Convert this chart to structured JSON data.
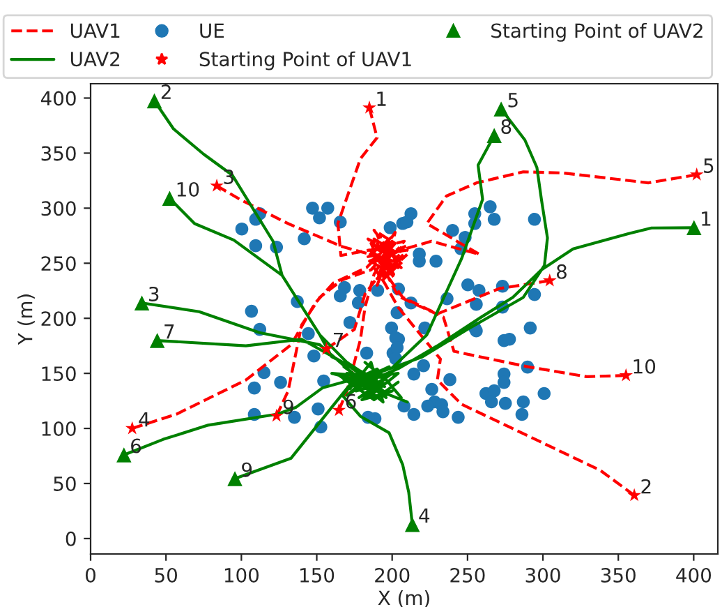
{
  "chart_data": {
    "type": "line",
    "xlabel": "X (m)",
    "ylabel": "Y (m)",
    "xlim": [
      0,
      416
    ],
    "ylim": [
      -14,
      413
    ],
    "xticks": [
      0,
      50,
      100,
      150,
      200,
      250,
      300,
      350,
      400
    ],
    "yticks": [
      0,
      50,
      100,
      150,
      200,
      250,
      300,
      350,
      400
    ],
    "grid": false,
    "legend": "top",
    "series": [
      {
        "name": "UAV1",
        "color": "#ff0000",
        "line_style": "dashed",
        "marker": "none",
        "x": [
          184.9,
          190,
          179,
          164,
          166,
          185,
          200,
          188,
          205,
          192,
          198,
          null,
          360.6,
          338,
          246,
          230,
          232,
          204,
          195,
          186,
          208,
          190,
          200,
          184,
          null,
          83.7,
          99,
          131,
          167,
          186,
          206,
          190,
          201,
          185,
          210,
          null,
          27.6,
          57,
          103,
          133,
          149,
          161,
          183,
          200,
          190,
          206,
          187,
          null,
          402,
          370,
          313,
          287,
          256,
          236,
          223,
          258,
          226,
          206,
          188,
          202,
          194,
          210,
          null,
          164.7,
          170,
          179,
          182,
          188,
          198,
          184,
          204,
          192,
          null,
          156.4,
          175,
          182,
          194,
          186,
          207,
          190,
          200,
          null,
          304.5,
          271,
          230,
          207,
          196,
          210,
          184,
          200,
          192,
          null,
          123.3,
          131,
          140,
          152,
          167,
          186,
          202,
          188,
          206,
          196,
          null,
          355.1,
          329,
          290,
          241,
          234,
          204,
          194,
          208,
          186,
          202
        ],
        "values": [
          391.2,
          364,
          345,
          286,
          257,
          262,
          248,
          272,
          258,
          240,
          266,
          null,
          39.2,
          62,
          122,
          144,
          163,
          210,
          232,
          250,
          262,
          276,
          244,
          260,
          null,
          320.3,
          308,
          286,
          265,
          258,
          250,
          268,
          240,
          252,
          266,
          null,
          100,
          113,
          144,
          176,
          214,
          232,
          246,
          270,
          236,
          254,
          264,
          null,
          330.4,
          323,
          332,
          333,
          323,
          311,
          286,
          258,
          270,
          262,
          250,
          278,
          238,
          258,
          null,
          116.5,
          134,
          181,
          210,
          240,
          262,
          272,
          246,
          256,
          null,
          172.2,
          190,
          222,
          244,
          268,
          252,
          230,
          264,
          null,
          234.2,
          227,
          204,
          219,
          240,
          262,
          256,
          274,
          246,
          null,
          111.4,
          134,
          194,
          219,
          235,
          244,
          268,
          280,
          246,
          258,
          null,
          148.1,
          147,
          156,
          170,
          201,
          220,
          246,
          270,
          262,
          236
        ]
      },
      {
        "name": "UAV2",
        "color": "#008000",
        "line_style": "solid",
        "marker": "none",
        "x": [
          400.2,
          372,
          357,
          320,
          299,
          280,
          259,
          230,
          205,
          180,
          196,
          170,
          190,
          null,
          42.3,
          55,
          75,
          94,
          121,
          127,
          152,
          170,
          192,
          178,
          200,
          184,
          null,
          34,
          72,
          112,
          152,
          174,
          195,
          165,
          188,
          204,
          null,
          213.4,
          211,
          207,
          198,
          179,
          167,
          180,
          196,
          172,
          190,
          206,
          null,
          272.3,
          288,
          296,
          299,
          303,
          301,
          287,
          250,
          220,
          190,
          176,
          198,
          182,
          null,
          22.1,
          48,
          78,
          124,
          136,
          154,
          178,
          196,
          168,
          188,
          210,
          null,
          44.2,
          103,
          140,
          170,
          188,
          160,
          196,
          180,
          200,
          null,
          267.7,
          257,
          260,
          246,
          223,
          200,
          176,
          194,
          186,
          172,
          null,
          95.7,
          133,
          161,
          178,
          194,
          168,
          204,
          184,
          null,
          52.4,
          69,
          95,
          127,
          152,
          160,
          185,
          170,
          198,
          176
        ],
        "values": [
          282.3,
          282,
          277,
          263,
          244,
          219,
          201,
          175,
          155,
          140,
          130,
          150,
          146,
          null,
          397.5,
          372,
          349,
          330,
          270,
          239,
          185,
          160,
          140,
          128,
          150,
          136,
          null,
          213.9,
          206,
          187,
          176,
          150,
          138,
          148,
          126,
          142,
          null,
          12.7,
          42,
          67,
          96,
          111,
          130,
          150,
          132,
          142,
          154,
          128,
          null,
          390,
          362,
          337,
          308,
          273,
          248,
          219,
          190,
          165,
          150,
          134,
          142,
          160,
          null,
          76,
          90,
          103,
          113,
          119,
          137,
          146,
          128,
          156,
          136,
          124,
          null,
          179.8,
          175,
          181,
          158,
          140,
          150,
          146,
          126,
          134,
          null,
          365.9,
          339,
          308,
          254,
          185,
          155,
          144,
          124,
          160,
          136,
          null,
          54.4,
          73,
          121,
          150,
          132,
          144,
          150,
          128,
          null,
          308.9,
          286,
          271,
          239,
          185,
          165,
          148,
          130,
          156,
          142
        ]
      },
      {
        "name": "UE",
        "type": "scatter",
        "color": "#1f77b4",
        "marker": "circle",
        "x": [
          147.2,
          157.3,
          151.8,
          165.6,
          112.2,
          109.5,
          100.3,
          109.5,
          123.3,
          141.7,
          198.7,
          207,
          168.4,
          165.6,
          178.5,
          177.6,
          190.4,
          204.2,
          106.7,
          137.1,
          172,
          199.6,
          112.2,
          212.5,
          209.8,
          254.8,
          265,
          254.8,
          267.7,
          294.4,
          240.1,
          248.4,
          245.6,
          218,
          218,
          229.1,
          250.2,
          257.6,
          273.2,
          294.4,
          255.8,
          273.2,
          236.4,
          212.5,
          203.3,
          221.7,
          254.8,
          291.6,
          115,
          108.6,
          126,
          108.6,
          135.2,
          152.7,
          150.9,
          144.4,
          148.1,
          204.2,
          200.6,
          188.6,
          184,
          154.6,
          183.1,
          255.8,
          274.2,
          277.8,
          202.4,
          203.3,
          202.4,
          220.8,
          289.8,
          214.4,
          238.3,
          274.2,
          274.2,
          226.3,
          262.2,
          267.7,
          265.9,
          275.1,
          287,
          300.8,
          286.1,
          228.2,
          232.8,
          223.6,
          233.7,
          207.9,
          214.4,
          243.8
        ],
        "values": [
          300,
          300,
          291.2,
          287.4,
          295,
          289.9,
          281.1,
          265.9,
          264.6,
          272.2,
          282.3,
          286.1,
          227.9,
          220.3,
          225.3,
          214,
          225.3,
          226.6,
          206.4,
          215.2,
          196.2,
          191.2,
          189.9,
          295,
          287.4,
          295,
          301.3,
          286.1,
          289.9,
          289.9,
          279.8,
          273.5,
          263.3,
          258.3,
          251.9,
          251.9,
          230.4,
          225.3,
          229.1,
          221.6,
          212.7,
          210.2,
          217.8,
          213.9,
          205.1,
          191.2,
          191.2,
          191.2,
          150.7,
          136.7,
          141.8,
          112.7,
          110.1,
          101.3,
          117.7,
          186.1,
          165.8,
          181,
          168.4,
          108.9,
          110.1,
          143.1,
          168.4,
          188.6,
          179.8,
          181,
          182.3,
          173.4,
          163.3,
          157,
          155.7,
          149.4,
          144.3,
          149.4,
          141.8,
          135.5,
          131.7,
          134.2,
          124.1,
          122.8,
          124.1,
          131.7,
          112.7,
          124.1,
          121.5,
          120.3,
          115.2,
          120.3,
          112.7,
          110.1
        ]
      },
      {
        "name": "Starting Point of UAV1",
        "type": "scatter",
        "color": "#ff0000",
        "marker": "star",
        "x": [
          184.9,
          360.6,
          83.7,
          27.6,
          402,
          164.7,
          156.4,
          304.5,
          123.3,
          355.1
        ],
        "values": [
          391.2,
          39.2,
          320.3,
          100,
          330.4,
          116.5,
          172.2,
          234.2,
          111.4,
          148.1
        ]
      },
      {
        "name": "Starting Point of UAV2",
        "type": "scatter",
        "color": "#008000",
        "marker": "triangle",
        "x": [
          400.2,
          42.3,
          34,
          213.4,
          272.3,
          22.1,
          44.2,
          267.7,
          95.7,
          52.4
        ],
        "values": [
          282.3,
          397.5,
          213.9,
          12.7,
          390,
          76,
          179.8,
          365.9,
          54.4,
          308.9
        ]
      }
    ],
    "annotations": [
      {
        "text": "1",
        "x": 184.9,
        "y": 391.2
      },
      {
        "text": "2",
        "x": 360.6,
        "y": 39.2
      },
      {
        "text": "3",
        "x": 83.7,
        "y": 320.3
      },
      {
        "text": "4",
        "x": 27.6,
        "y": 100
      },
      {
        "text": "5",
        "x": 402,
        "y": 330.4
      },
      {
        "text": "6",
        "x": 164.7,
        "y": 116.5
      },
      {
        "text": "7",
        "x": 156.4,
        "y": 172.2
      },
      {
        "text": "8",
        "x": 304.5,
        "y": 234.2
      },
      {
        "text": "9",
        "x": 123.3,
        "y": 111.4
      },
      {
        "text": "10",
        "x": 355.1,
        "y": 148.1
      },
      {
        "text": "1",
        "x": 400.2,
        "y": 282.3
      },
      {
        "text": "2",
        "x": 42.3,
        "y": 397.5
      },
      {
        "text": "3",
        "x": 34,
        "y": 213.9
      },
      {
        "text": "4",
        "x": 213.4,
        "y": 12.7
      },
      {
        "text": "5",
        "x": 272.3,
        "y": 390
      },
      {
        "text": "6",
        "x": 22.1,
        "y": 76
      },
      {
        "text": "7",
        "x": 44.2,
        "y": 179.8
      },
      {
        "text": "8",
        "x": 267.7,
        "y": 365.9
      },
      {
        "text": "9",
        "x": 95.7,
        "y": 54.4
      },
      {
        "text": "10",
        "x": 52.4,
        "y": 308.9
      }
    ]
  }
}
